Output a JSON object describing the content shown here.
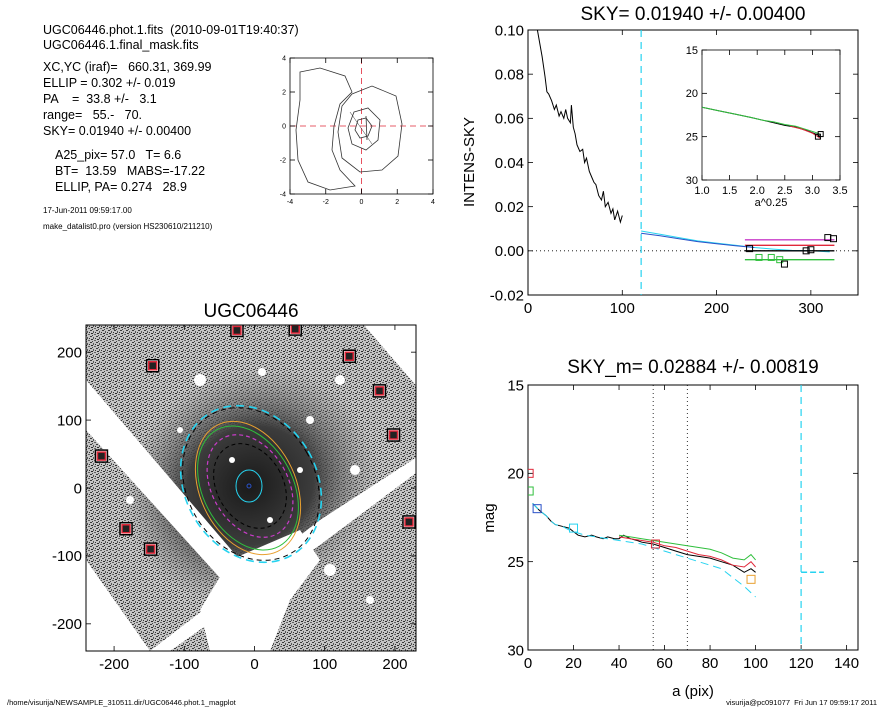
{
  "info": {
    "line1": "UGC06446.phot.1.fits  (2010-09-01T19:40:37)",
    "line2": "UGC06446.1.final_mask.fits",
    "line3": "XC,YC (iraf)=   660.31, 369.99",
    "line4": "ELLIP = 0.302 +/- 0.019",
    "line5": "PA    =  33.8 +/-   3.1",
    "line6": "range=   55.-   70.",
    "line7": "SKY= 0.01940 +/- 0.00400",
    "line8": "A25_pix= 57.0   T= 6.6",
    "line9": "BT=  13.59   MABS=-17.22",
    "line10": "ELLIP, PA= 0.274   28.9",
    "date": "17-Jun-2011 09:59:17.00",
    "program": "make_datalist0.pro (version HS230610/211210)"
  },
  "footer": {
    "left": "/home/visurija/NEWSAMPLE_310511.dir/UGC06446.phot.1_magplot",
    "right": "visurija@pc091077  Fri Jun 17 09:59:17 2011"
  },
  "colors": {
    "cyan": "#26d3f0",
    "red": "#e0283a",
    "green": "#2fbf3c",
    "blue": "#2a52c8",
    "magenta": "#c83cc8",
    "orange": "#e8a030",
    "gray": "#9a9a9a"
  },
  "chart_data": [
    {
      "id": "contour-inset",
      "type": "contour",
      "xlim": [
        -4,
        4
      ],
      "ylim": [
        -4,
        4
      ],
      "xticks": [
        "-4",
        "-2",
        "0",
        "2",
        "4"
      ],
      "yticks": [
        "-4",
        "-2",
        "0",
        "2",
        "4"
      ]
    },
    {
      "id": "sky-profile",
      "type": "line",
      "title": "SKY= 0.01940 +/- 0.00400",
      "xlabel": "",
      "ylabel": "INTENS-SKY",
      "xlim": [
        0,
        350
      ],
      "ylim": [
        -0.02,
        0.1
      ],
      "xticks": [
        "0",
        "100",
        "200",
        "300"
      ],
      "yticks": [
        "-0.02",
        "0.00",
        "0.02",
        "0.04",
        "0.06",
        "0.08",
        "0.10"
      ],
      "cyan_dashed_x": 120,
      "series": [
        {
          "color": "black",
          "x": [
            10,
            15,
            18,
            20,
            22,
            25,
            28,
            30,
            33,
            35,
            38,
            40,
            42,
            45,
            46,
            48,
            50,
            52,
            55,
            58,
            60,
            62,
            65,
            68,
            70,
            72,
            75,
            78,
            80,
            82,
            85,
            88,
            90,
            92,
            95,
            98,
            100
          ],
          "y": [
            0.1,
            0.088,
            0.079,
            0.072,
            0.071,
            0.068,
            0.064,
            0.066,
            0.061,
            0.063,
            0.06,
            0.064,
            0.06,
            0.058,
            0.066,
            0.056,
            0.053,
            0.048,
            0.045,
            0.046,
            0.04,
            0.042,
            0.036,
            0.033,
            0.031,
            0.03,
            0.025,
            0.023,
            0.027,
            0.02,
            0.022,
            0.017,
            0.019,
            0.014,
            0.018,
            0.013,
            0.016
          ]
        },
        {
          "color": "cyan",
          "x": [
            120,
            140,
            160,
            180,
            200,
            220,
            240,
            260,
            280,
            300,
            320
          ],
          "y": [
            0.009,
            0.0075,
            0.006,
            0.0045,
            0.0035,
            0.0025,
            0.0015,
            0.0008,
            0.0002,
            0.0,
            -0.0005
          ]
        },
        {
          "color": "blue",
          "x": [
            120,
            140,
            160,
            180,
            200,
            220,
            240
          ],
          "y": [
            0.008,
            0.0068,
            0.0055,
            0.0042,
            0.0032,
            0.0023,
            0.0015
          ]
        },
        {
          "color": "magenta",
          "x": [
            230,
            325
          ],
          "y": [
            0.005,
            0.005
          ]
        },
        {
          "color": "red",
          "x": [
            230,
            325
          ],
          "y": [
            0.0025,
            0.0025
          ]
        },
        {
          "color": "black",
          "x": [
            230,
            325
          ],
          "y": [
            0.0,
            0.0
          ]
        },
        {
          "color": "green",
          "x": [
            230,
            325
          ],
          "y": [
            -0.004,
            -0.004
          ]
        }
      ],
      "markers": [
        {
          "x": 235,
          "y": 0.001,
          "color": "black"
        },
        {
          "x": 245,
          "y": -0.003,
          "color": "green"
        },
        {
          "x": 258,
          "y": -0.003,
          "color": "green"
        },
        {
          "x": 267,
          "y": -0.004,
          "color": "green"
        },
        {
          "x": 272,
          "y": -0.006,
          "color": "black"
        },
        {
          "x": 295,
          "y": 0.0,
          "color": "black"
        },
        {
          "x": 300,
          "y": 0.0005,
          "color": "black"
        },
        {
          "x": 318,
          "y": 0.006,
          "color": "black"
        },
        {
          "x": 324,
          "y": 0.0055,
          "color": "black"
        }
      ]
    },
    {
      "id": "sky-inset",
      "type": "line",
      "xlabel": "a^0.25",
      "xlim": [
        1.0,
        3.5
      ],
      "ylim": [
        30,
        15
      ],
      "xticks": [
        "1.0",
        "1.5",
        "2.0",
        "2.5",
        "3.0",
        "3.5"
      ],
      "yticks": [
        "15",
        "20",
        "25",
        "30"
      ],
      "series": [
        {
          "color": "black",
          "x": [
            1.0,
            1.3,
            1.6,
            1.9,
            2.1,
            2.3,
            2.5,
            2.7,
            2.9,
            3.1,
            3.15
          ],
          "y": [
            21.6,
            22.0,
            22.4,
            22.8,
            23.1,
            23.4,
            23.7,
            23.9,
            24.3,
            24.8,
            25.0
          ]
        },
        {
          "color": "green",
          "x": [
            1.0,
            1.3,
            1.6,
            1.9,
            2.1,
            2.3,
            2.5,
            2.7,
            2.9,
            3.1,
            3.15
          ],
          "y": [
            21.6,
            22.0,
            22.4,
            22.8,
            23.1,
            23.3,
            23.6,
            23.8,
            24.2,
            24.6,
            24.8
          ]
        },
        {
          "color": "red",
          "x": [
            2.6,
            2.8,
            3.0,
            3.15
          ],
          "y": [
            23.8,
            24.1,
            24.6,
            25.2
          ]
        }
      ],
      "markers": [
        {
          "x": 3.1,
          "y": 25.0
        },
        {
          "x": 3.15,
          "y": 24.7
        }
      ]
    },
    {
      "id": "galaxy-image",
      "type": "image",
      "title": "UGC06446",
      "xlim": [
        -240,
        230
      ],
      "ylim": [
        -240,
        240
      ],
      "xticks": [
        "-200",
        "-100",
        "0",
        "100",
        "200"
      ],
      "yticks": [
        "-200",
        "-100",
        "0",
        "100",
        "200"
      ],
      "star_markers": [
        {
          "x": -25,
          "y": 232
        },
        {
          "x": 58,
          "y": 234
        },
        {
          "x": -145,
          "y": 180
        },
        {
          "x": 135,
          "y": 194
        },
        {
          "x": 178,
          "y": 143
        },
        {
          "x": 198,
          "y": 78
        },
        {
          "x": -218,
          "y": 47
        },
        {
          "x": -183,
          "y": -60
        },
        {
          "x": -148,
          "y": -90
        },
        {
          "x": 220,
          "y": -50
        }
      ]
    },
    {
      "id": "mag-profile",
      "type": "line",
      "title": "SKY_m=  0.02884 +/- 0.00819",
      "xlabel": "a (pix)",
      "ylabel": "mag",
      "xlim": [
        0,
        145
      ],
      "ylim": [
        30,
        15
      ],
      "xticks": [
        "0",
        "20",
        "40",
        "60",
        "80",
        "100",
        "120",
        "140"
      ],
      "yticks": [
        "15",
        "20",
        "25",
        "30"
      ],
      "dotted_x": [
        55,
        70
      ],
      "cyan_dashed_x": 120,
      "cyan_segment": {
        "x": [
          120,
          130
        ],
        "y": 25.6
      },
      "series": [
        {
          "color": "black",
          "x": [
            2,
            5,
            8,
            10,
            12,
            15,
            18,
            20,
            22,
            25,
            28,
            30,
            33,
            35,
            38,
            40,
            42,
            45,
            48,
            50,
            55,
            60,
            65,
            70,
            75,
            80,
            85,
            90,
            95,
            98,
            100
          ],
          "y": [
            21.7,
            22.1,
            22.4,
            22.7,
            22.9,
            23.0,
            23.1,
            23.3,
            23.5,
            23.6,
            23.5,
            23.6,
            23.7,
            23.6,
            23.7,
            23.7,
            23.5,
            23.7,
            23.8,
            23.9,
            24.0,
            24.2,
            24.4,
            24.6,
            24.7,
            24.8,
            25.0,
            25.2,
            25.6,
            25.4,
            25.6
          ]
        },
        {
          "color": "red",
          "x": [
            40,
            45,
            50,
            55,
            60,
            65,
            70,
            75,
            80,
            85,
            90,
            95,
            98,
            100
          ],
          "y": [
            23.6,
            23.7,
            23.8,
            23.9,
            24.1,
            24.2,
            24.4,
            24.6,
            24.7,
            24.9,
            25.2,
            25.3,
            25.0,
            25.3
          ]
        },
        {
          "color": "green",
          "x": [
            40,
            45,
            50,
            55,
            60,
            65,
            70,
            75,
            80,
            85,
            90,
            95,
            98,
            100
          ],
          "y": [
            23.5,
            23.6,
            23.7,
            23.8,
            23.9,
            24.0,
            24.1,
            24.2,
            24.3,
            24.5,
            24.8,
            24.9,
            24.6,
            24.9
          ]
        },
        {
          "color": "cyan",
          "x": [
            2,
            5,
            8,
            10,
            12,
            15,
            18,
            20,
            25,
            30,
            35,
            40,
            45,
            50,
            55,
            60,
            65,
            70,
            75,
            80,
            85,
            90,
            95,
            100
          ],
          "y": [
            21.7,
            22.1,
            22.4,
            22.7,
            22.9,
            23.0,
            23.2,
            23.3,
            23.5,
            23.6,
            23.7,
            23.8,
            23.9,
            24.0,
            24.2,
            24.4,
            24.6,
            24.8,
            25.0,
            25.2,
            25.4,
            25.9,
            26.4,
            27.0
          ]
        }
      ],
      "markers": [
        {
          "x": 0.5,
          "y": 20.0,
          "color": "red"
        },
        {
          "x": 0.5,
          "y": 21.0,
          "color": "green"
        },
        {
          "x": 4,
          "y": 22.0,
          "color": "blue"
        },
        {
          "x": 20,
          "y": 23.1,
          "color": "cyan"
        },
        {
          "x": 56,
          "y": 24.0,
          "color": "red"
        },
        {
          "x": 98,
          "y": 26.0,
          "color": "orange"
        }
      ]
    }
  ]
}
